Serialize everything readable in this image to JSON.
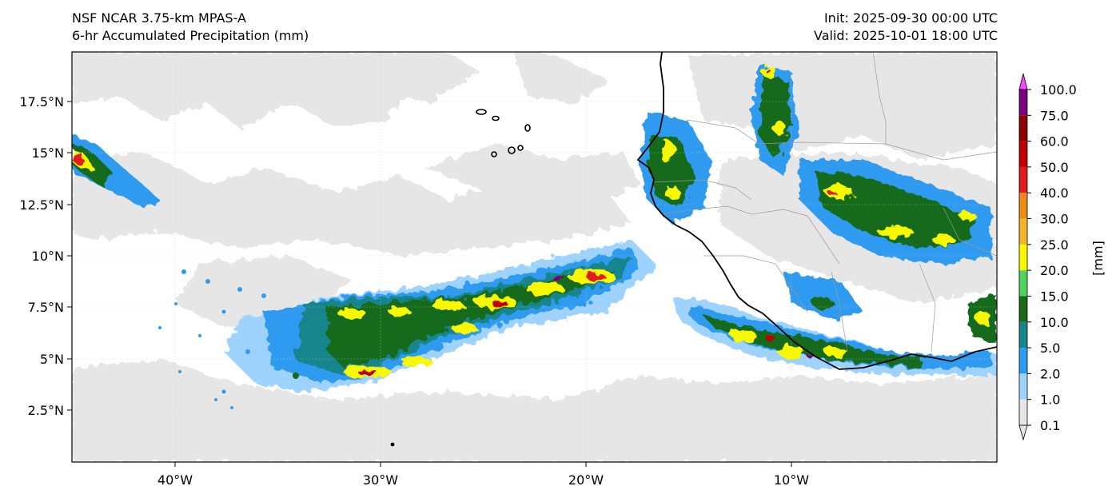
{
  "header": {
    "model": "NSF NCAR 3.75-km MPAS-A",
    "field": "6-hr Accumulated Precipitation (mm)",
    "init": "Init: 2025-09-30 00:00 UTC",
    "valid": "Valid: 2025-10-01 18:00 UTC"
  },
  "map": {
    "lon_ticks": [
      "40°W",
      "30°W",
      "20°W",
      "10°W"
    ],
    "lat_ticks": [
      "17.5°N",
      "15°N",
      "12.5°N",
      "10°N",
      "7.5°N",
      "5°N",
      "2.5°N"
    ]
  },
  "colorbar": {
    "unit_label": "[mm]",
    "levels": [
      "0.1",
      "1.0",
      "2.0",
      "5.0",
      "10.0",
      "15.0",
      "20.0",
      "25.0",
      "30.0",
      "40.0",
      "50.0",
      "60.0",
      "75.0",
      "100.0"
    ],
    "colors": [
      "#e6e6e6",
      "#9fd3ff",
      "#2f9bf0",
      "#17868c",
      "#186a1a",
      "#50d460",
      "#f8f800",
      "#f5b42c",
      "#ee8a1c",
      "#e31a1c",
      "#c00000",
      "#8b0000",
      "#7a0080",
      "#ff44ff"
    ]
  }
}
